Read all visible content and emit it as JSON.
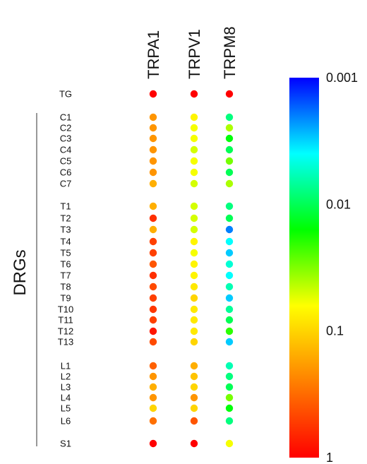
{
  "chart_data": {
    "type": "heatmap",
    "columns": [
      "TRPA1",
      "TRPV1",
      "TRPM8"
    ],
    "rows": [
      {
        "label": "TG",
        "values": [
          1,
          1,
          1
        ]
      },
      {
        "label": "C1",
        "values": [
          0.2,
          0.07,
          0.008
        ]
      },
      {
        "label": "C2",
        "values": [
          0.2,
          0.06,
          0.04
        ]
      },
      {
        "label": "C3",
        "values": [
          0.2,
          0.06,
          0.015
        ]
      },
      {
        "label": "C4",
        "values": [
          0.2,
          0.05,
          0.01
        ]
      },
      {
        "label": "C5",
        "values": [
          0.2,
          0.06,
          0.03
        ]
      },
      {
        "label": "C6",
        "values": [
          0.2,
          0.06,
          0.01
        ]
      },
      {
        "label": "C7",
        "values": [
          0.15,
          0.05,
          0.04
        ]
      },
      {
        "label": "T1",
        "values": [
          0.15,
          0.05,
          0.008
        ]
      },
      {
        "label": "T2",
        "values": [
          0.6,
          0.05,
          0.01
        ]
      },
      {
        "label": "T3",
        "values": [
          0.15,
          0.05,
          0.002
        ]
      },
      {
        "label": "T4",
        "values": [
          0.5,
          0.07,
          0.004
        ]
      },
      {
        "label": "T5",
        "values": [
          0.5,
          0.06,
          0.003
        ]
      },
      {
        "label": "T6",
        "values": [
          0.4,
          0.07,
          0.005
        ]
      },
      {
        "label": "T7",
        "values": [
          0.6,
          0.07,
          0.004
        ]
      },
      {
        "label": "T8",
        "values": [
          0.45,
          0.08,
          0.006
        ]
      },
      {
        "label": "T9",
        "values": [
          0.5,
          0.1,
          0.003
        ]
      },
      {
        "label": "T10",
        "values": [
          0.55,
          0.08,
          0.007
        ]
      },
      {
        "label": "T11",
        "values": [
          0.5,
          0.08,
          0.01
        ]
      },
      {
        "label": "T12",
        "values": [
          0.8,
          0.08,
          0.02
        ]
      },
      {
        "label": "T13",
        "values": [
          0.45,
          0.1,
          0.003
        ]
      },
      {
        "label": "L1",
        "values": [
          0.35,
          0.15,
          0.006
        ]
      },
      {
        "label": "L2",
        "values": [
          0.2,
          0.12,
          0.008
        ]
      },
      {
        "label": "L3",
        "values": [
          0.15,
          0.1,
          0.01
        ]
      },
      {
        "label": "L4",
        "values": [
          0.2,
          0.2,
          0.03
        ]
      },
      {
        "label": "L5",
        "values": [
          0.1,
          0.1,
          0.015
        ]
      },
      {
        "label": "L6",
        "values": [
          0.3,
          0.4,
          0.008
        ]
      },
      {
        "label": "S1",
        "values": [
          1,
          1,
          0.06
        ]
      }
    ],
    "group_label": "DRGs",
    "colorbar": {
      "scale": "log",
      "range": [
        1,
        0.001
      ],
      "tick_labels": [
        "0.001",
        "0.01",
        "0.1",
        "1"
      ],
      "colors": [
        "#ff0000",
        "#ff8000",
        "#ffff00",
        "#00ff00",
        "#00ffff",
        "#0000ff"
      ]
    }
  }
}
